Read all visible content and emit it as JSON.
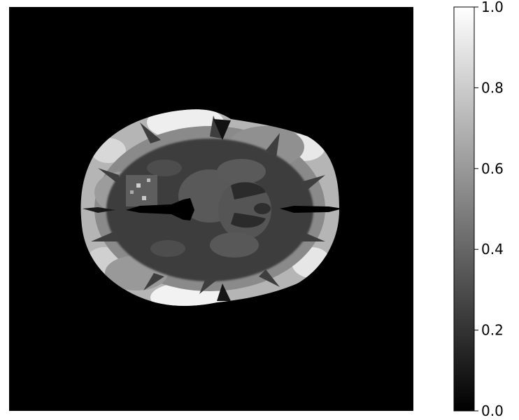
{
  "image": {
    "subject": "brain-mri-axial-slice",
    "colormap": "gray",
    "background_color": "#000000"
  },
  "colorbar": {
    "min": 0.0,
    "max": 1.0,
    "ticks": [
      {
        "value": 0.0,
        "label": "0.0"
      },
      {
        "value": 0.2,
        "label": "0.2"
      },
      {
        "value": 0.4,
        "label": "0.4"
      },
      {
        "value": 0.6,
        "label": "0.6"
      },
      {
        "value": 0.8,
        "label": "0.8"
      },
      {
        "value": 1.0,
        "label": "1.0"
      }
    ]
  }
}
